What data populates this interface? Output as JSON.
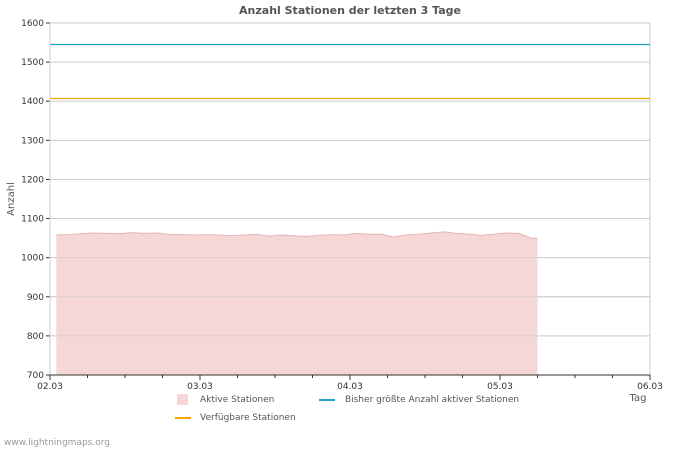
{
  "chart_data": {
    "type": "area",
    "title": "Anzahl Stationen der letzten 3 Tage",
    "xlabel": "Tag",
    "ylabel": "Anzahl",
    "ylim": [
      700,
      1600
    ],
    "yticks": [
      700,
      800,
      900,
      1000,
      1100,
      1200,
      1300,
      1400,
      1500,
      1600
    ],
    "xlim_hours": [
      0,
      96
    ],
    "xticks": [
      {
        "hours": 0,
        "label": "02.03"
      },
      {
        "hours": 24,
        "label": "03.03"
      },
      {
        "hours": 48,
        "label": "04.03"
      },
      {
        "hours": 72,
        "label": "05.03"
      },
      {
        "hours": 96,
        "label": "06.03"
      }
    ],
    "grid": true,
    "legend_placement": "bottom",
    "series": [
      {
        "name": "Aktive Stationen",
        "type": "area",
        "color": "#f5d7d7",
        "line_color": "#e8b4b4",
        "x_hours": [
          1,
          3,
          5,
          7,
          9,
          11,
          13,
          15,
          17,
          19,
          21,
          23,
          25,
          27,
          29,
          31,
          33,
          35,
          37,
          39,
          41,
          43,
          45,
          47,
          49,
          51,
          53,
          55,
          57,
          59,
          61,
          63,
          65,
          67,
          69,
          71,
          73,
          75,
          77,
          78
        ],
        "values": [
          1058,
          1059,
          1061,
          1063,
          1062,
          1061,
          1064,
          1062,
          1063,
          1060,
          1059,
          1058,
          1059,
          1058,
          1056,
          1058,
          1060,
          1055,
          1058,
          1056,
          1054,
          1057,
          1059,
          1058,
          1062,
          1060,
          1060,
          1053,
          1058,
          1060,
          1063,
          1066,
          1062,
          1060,
          1057,
          1060,
          1063,
          1062,
          1050,
          1049
        ]
      },
      {
        "name": "Bisher größte Anzahl aktiver Stationen",
        "type": "hline",
        "value": 1545,
        "color": "#1ba3c6"
      },
      {
        "name": "Verfügbare Stationen",
        "type": "hline",
        "value": 1407,
        "color": "#f5a300"
      }
    ]
  },
  "footer": "www.lightningmaps.org"
}
